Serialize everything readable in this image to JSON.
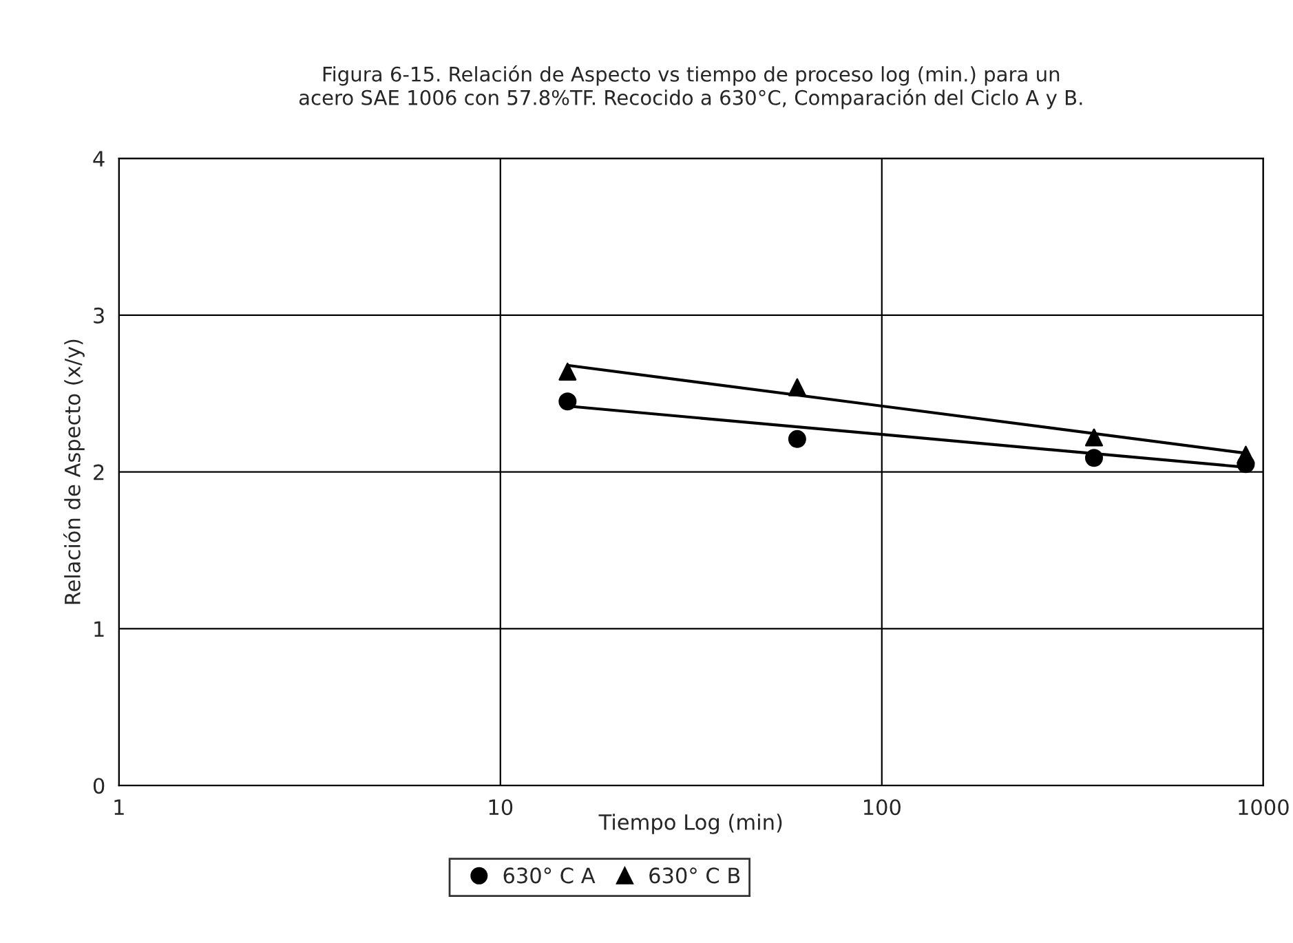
{
  "chart_data": {
    "type": "scatter",
    "title": "Figura 6-15. Relación de Aspecto vs tiempo de proceso log (min.) para un\nacero SAE 1006 con 57.8%TF. Recocido a 630°C, Comparación del Ciclo A y B.",
    "xlabel": "Tiempo Log (min)",
    "ylabel": "Relación de Aspecto (x/y)",
    "log": "x",
    "xlim": [
      1,
      1000
    ],
    "xticks": [
      1,
      10,
      100,
      1000
    ],
    "ylim": [
      0,
      4
    ],
    "yticks": [
      0,
      1,
      2,
      3,
      4
    ],
    "grid": true,
    "legend": "bottom",
    "series": [
      {
        "name": "630° C A",
        "color": "#000000",
        "marker": "circle",
        "x": [
          15,
          60,
          360,
          900
        ],
        "values": [
          2.45,
          2.21,
          2.09,
          2.05
        ]
      },
      {
        "name": "630° C B",
        "color": "#000000",
        "marker": "triangle",
        "x": [
          15,
          60,
          360,
          900
        ],
        "values": [
          2.64,
          2.54,
          2.22,
          2.11
        ]
      },
      {
        "type": "line",
        "color": "#000000",
        "x": [
          15,
          900
        ],
        "values": [
          2.42,
          2.03
        ]
      },
      {
        "type": "line",
        "color": "#000000",
        "x": [
          15,
          900
        ],
        "values": [
          2.68,
          2.12
        ]
      }
    ]
  }
}
